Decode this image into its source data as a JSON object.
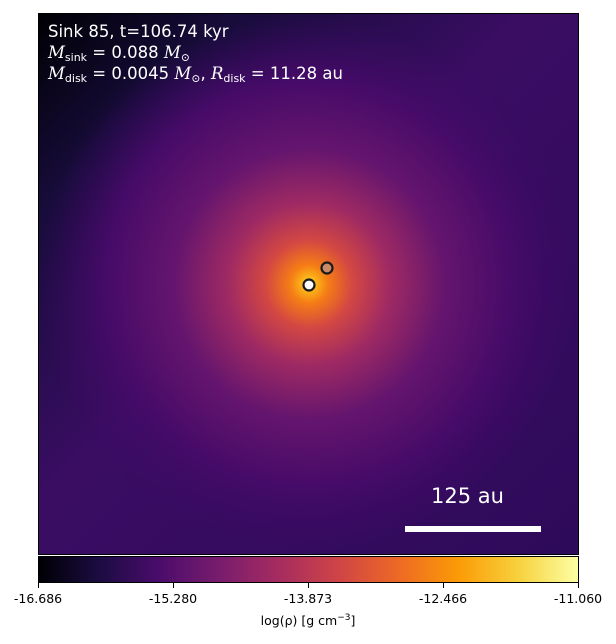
{
  "annotation": {
    "line1": "Sink 85, t=106.74 kyr",
    "line2_symbol": "M",
    "line2_sub": "sink",
    "line2_rest": " = 0.088 ",
    "line2_unit": "M",
    "line2_unit_sub": "⊙",
    "line3_symbol": "M",
    "line3_sub": "disk",
    "line3_rest": " = 0.0045 ",
    "line3_unit": "M",
    "line3_unit_sub": "⊙",
    "line3_sep": ", ",
    "line3_symbol2": "R",
    "line3_sub2": "disk",
    "line3_rest2": " = 11.28 au"
  },
  "scale_bar": {
    "label": "125 au"
  },
  "colorbar": {
    "ticks": [
      "-16.686",
      "-15.280",
      "-13.873",
      "-12.466",
      "-11.060"
    ],
    "label_main": "log(ρ) [g cm",
    "label_sup": "−3",
    "label_end": "]",
    "colormap": "inferno"
  },
  "sinks": [
    {
      "name": "primary",
      "fill": "#ffffff"
    },
    {
      "name": "secondary",
      "fill": "#c98a6a"
    }
  ]
}
